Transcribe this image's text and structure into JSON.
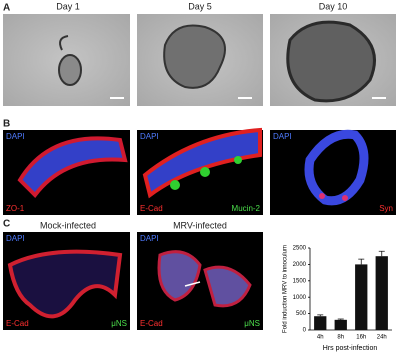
{
  "panels": {
    "a": {
      "label": "A",
      "titles": [
        "Day 1",
        "Day 5",
        "Day 10"
      ]
    },
    "b": {
      "label": "B",
      "images": [
        {
          "stain": "DAPI",
          "marker": "ZO-1"
        },
        {
          "stain": "DAPI",
          "marker": "E-Cad",
          "marker2": "Mucin-2"
        },
        {
          "stain": "DAPI",
          "marker": "Syn"
        }
      ]
    },
    "c": {
      "label": "C",
      "titles": [
        "Mock-infected",
        "MRV-infected"
      ],
      "images": [
        {
          "stain": "DAPI",
          "marker": "E-Cad",
          "marker2": "μNS"
        },
        {
          "stain": "DAPI",
          "marker": "E-Cad",
          "marker2": "μNS"
        }
      ]
    }
  },
  "chart_data": {
    "type": "bar",
    "y_label": "Fold induction MRV  to innoculum",
    "x_label": "Hrs post-infection",
    "categories": [
      "4h",
      "8h",
      "16h",
      "24h"
    ],
    "values": [
      420,
      310,
      2000,
      2250
    ],
    "errors": [
      40,
      25,
      160,
      150
    ],
    "color": "#111111",
    "ylim": [
      0,
      2500
    ],
    "yticks": [
      0,
      500,
      1000,
      1500,
      2000,
      2500
    ]
  }
}
